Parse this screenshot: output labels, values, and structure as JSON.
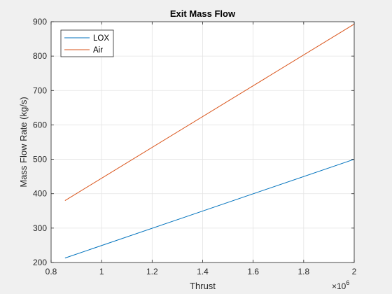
{
  "chart_data": {
    "type": "line",
    "title": "Exit Mass Flow",
    "xlabel": "Thrust",
    "ylabel": "Mass Flow Rate (kg/s)",
    "x_exponent_label": "×10",
    "x_exponent_power": "6",
    "xlim": [
      0.8,
      2
    ],
    "ylim": [
      200,
      900
    ],
    "xticks": [
      0.8,
      1,
      1.2,
      1.4,
      1.6,
      1.8,
      2
    ],
    "xtick_labels": [
      "0.8",
      "1",
      "1.2",
      "1.4",
      "1.6",
      "1.8",
      "2"
    ],
    "yticks": [
      200,
      300,
      400,
      500,
      600,
      700,
      800,
      900
    ],
    "ytick_labels": [
      "200",
      "300",
      "400",
      "500",
      "600",
      "700",
      "800",
      "900"
    ],
    "grid": true,
    "legend_position": "top-left",
    "series": [
      {
        "name": "LOX",
        "color": "#0072bd",
        "x": [
          0.855,
          2.0
        ],
        "y": [
          213,
          500
        ]
      },
      {
        "name": "Air",
        "color": "#d95319",
        "x": [
          0.855,
          2.0
        ],
        "y": [
          380,
          893
        ]
      }
    ]
  }
}
